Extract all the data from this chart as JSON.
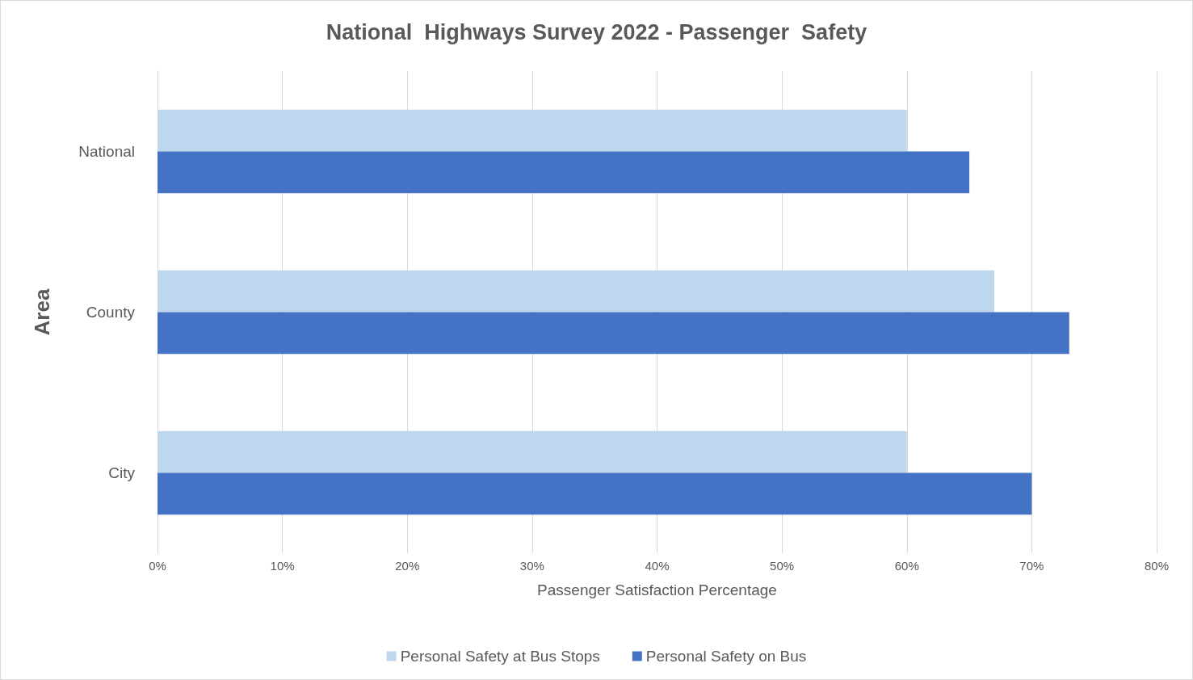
{
  "chart_data": {
    "type": "bar",
    "orientation": "horizontal",
    "title": "National  Highways Survey 2022 - Passenger  Safety",
    "xlabel": "Passenger Satisfaction Percentage",
    "ylabel": "Area",
    "categories": [
      "National",
      "County",
      "City"
    ],
    "series": [
      {
        "name": "Personal Safety at Bus Stops",
        "color": "#bdd7ee",
        "values": [
          60,
          67,
          60
        ]
      },
      {
        "name": "Personal Safety on Bus",
        "color": "#4472c4",
        "values": [
          65,
          73,
          70
        ]
      }
    ],
    "xlim": [
      0,
      80
    ],
    "xticks": [
      {
        "value": 0,
        "label": "0%"
      },
      {
        "value": 10,
        "label": "10%"
      },
      {
        "value": 20,
        "label": "20%"
      },
      {
        "value": 30,
        "label": "30%"
      },
      {
        "value": 40,
        "label": "40%"
      },
      {
        "value": 50,
        "label": "50%"
      },
      {
        "value": 60,
        "label": "60%"
      },
      {
        "value": 70,
        "label": "70%"
      },
      {
        "value": 80,
        "label": "80%"
      }
    ],
    "grid": "x",
    "legend": "bottom"
  }
}
